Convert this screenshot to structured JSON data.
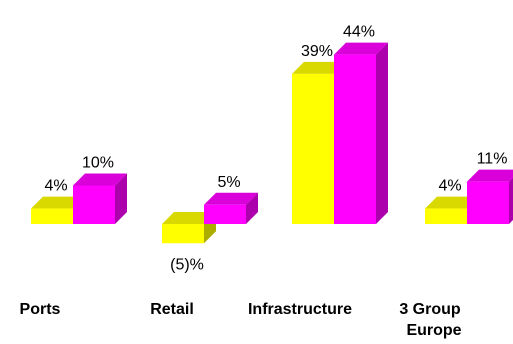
{
  "chart_data": {
    "type": "bar",
    "style": "3d-clustered",
    "categories": [
      "Ports",
      "Retail",
      "Infrastructure",
      "3 Group Europe"
    ],
    "category_label_lines": [
      [
        "Ports"
      ],
      [
        "Retail"
      ],
      [
        "Infrastructure"
      ],
      [
        "3 Group",
        "Europe"
      ]
    ],
    "series": [
      {
        "color": "#ffff00",
        "values": [
          4,
          -5,
          39,
          4
        ],
        "labels": [
          "4%",
          "(5)%",
          "39%",
          "4%"
        ]
      },
      {
        "color": "#ff00ff",
        "values": [
          10,
          5,
          44,
          11
        ],
        "labels": [
          "10%",
          "5%",
          "44%",
          "11%"
        ]
      }
    ],
    "title": "",
    "xlabel": "",
    "ylabel": "",
    "ylim": [
      -5,
      44
    ],
    "grid": false,
    "legend": "none",
    "axes_visible": false
  }
}
